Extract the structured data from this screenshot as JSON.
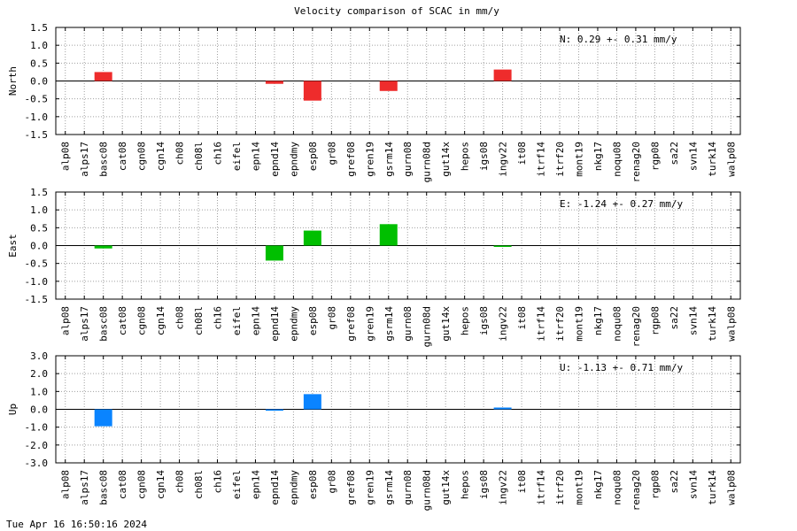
{
  "title": "Velocity comparison of SCAC in mm/y",
  "timestamp": "Tue Apr 16 16:50:16 2024",
  "colors": {
    "north": "#ee2c2c",
    "east": "#00bf00",
    "up": "#0a84ff",
    "grid": "#a0a0a0",
    "zero": "#000000"
  },
  "chart_data": [
    {
      "type": "bar",
      "ylabel": "North",
      "ylim": [
        -1.5,
        1.5
      ],
      "yticks": [
        "1.5",
        "1.0",
        "0.5",
        "0.0",
        "-0.5",
        "-1.0",
        "-1.5"
      ],
      "grid": true,
      "annotation": "N:   0.29 +-  0.31 mm/y",
      "color": "#ee2c2c",
      "categories": [
        "alp08",
        "alps17",
        "basc08",
        "cat08",
        "cgn08",
        "cgn14",
        "ch08",
        "ch08l",
        "ch16",
        "eifel",
        "epn14",
        "epnd14",
        "epndmy",
        "esp08",
        "gr08",
        "gref08",
        "gren19",
        "gsrm14",
        "gurn08",
        "gurn08d",
        "gut14x",
        "hepos",
        "igs08",
        "ingv22",
        "it08",
        "itrf14",
        "itrf20",
        "mont19",
        "nkg17",
        "noqu08",
        "renag20",
        "rgp08",
        "sa22",
        "svn14",
        "turk14",
        "walp08"
      ],
      "values": [
        0,
        0,
        0.25,
        0,
        0,
        0,
        0,
        0,
        0,
        0,
        0,
        -0.08,
        0,
        -0.55,
        0,
        0,
        0,
        -0.28,
        0,
        0,
        0,
        0,
        0,
        0.32,
        0,
        0,
        0,
        0,
        0,
        0,
        0,
        0,
        0,
        0,
        0,
        0
      ]
    },
    {
      "type": "bar",
      "ylabel": "East",
      "ylim": [
        -1.5,
        1.5
      ],
      "yticks": [
        "1.5",
        "1.0",
        "0.5",
        "0.0",
        "-0.5",
        "-1.0",
        "-1.5"
      ],
      "grid": true,
      "annotation": "E:  -1.24 +-  0.27 mm/y",
      "color": "#00bf00",
      "categories": [
        "alp08",
        "alps17",
        "basc08",
        "cat08",
        "cgn08",
        "cgn14",
        "ch08",
        "ch08l",
        "ch16",
        "eifel",
        "epn14",
        "epnd14",
        "epndmy",
        "esp08",
        "gr08",
        "gref08",
        "gren19",
        "gsrm14",
        "gurn08",
        "gurn08d",
        "gut14x",
        "hepos",
        "igs08",
        "ingv22",
        "it08",
        "itrf14",
        "itrf20",
        "mont19",
        "nkg17",
        "noqu08",
        "renag20",
        "rgp08",
        "sa22",
        "svn14",
        "turk14",
        "walp08"
      ],
      "values": [
        0,
        0,
        -0.08,
        0,
        0,
        0,
        0,
        0,
        0,
        0,
        0,
        -0.42,
        0,
        0.42,
        0,
        0,
        0,
        0.6,
        0,
        0,
        0,
        0,
        0,
        -0.03,
        0,
        0,
        0,
        0,
        0,
        0,
        0,
        0,
        0,
        0,
        0,
        0
      ]
    },
    {
      "type": "bar",
      "ylabel": "Up",
      "ylim": [
        -3.0,
        3.0
      ],
      "yticks": [
        "3.0",
        "2.0",
        "1.0",
        "0.0",
        "-1.0",
        "-2.0",
        "-3.0"
      ],
      "grid": true,
      "annotation": "U:  -1.13 +-  0.71 mm/y",
      "color": "#0a84ff",
      "categories": [
        "alp08",
        "alps17",
        "basc08",
        "cat08",
        "cgn08",
        "cgn14",
        "ch08",
        "ch08l",
        "ch16",
        "eifel",
        "epn14",
        "epnd14",
        "epndmy",
        "esp08",
        "gr08",
        "gref08",
        "gren19",
        "gsrm14",
        "gurn08",
        "gurn08d",
        "gut14x",
        "hepos",
        "igs08",
        "ingv22",
        "it08",
        "itrf14",
        "itrf20",
        "mont19",
        "nkg17",
        "noqu08",
        "renag20",
        "rgp08",
        "sa22",
        "svn14",
        "turk14",
        "walp08"
      ],
      "values": [
        0,
        0,
        -0.95,
        0,
        0,
        0,
        0,
        0,
        0,
        0,
        0,
        -0.08,
        0,
        0.85,
        0,
        0,
        0,
        0,
        0,
        0,
        0,
        0,
        0,
        0.1,
        0,
        0,
        0,
        0,
        0,
        0,
        0,
        0,
        0,
        0,
        0,
        0
      ]
    }
  ]
}
